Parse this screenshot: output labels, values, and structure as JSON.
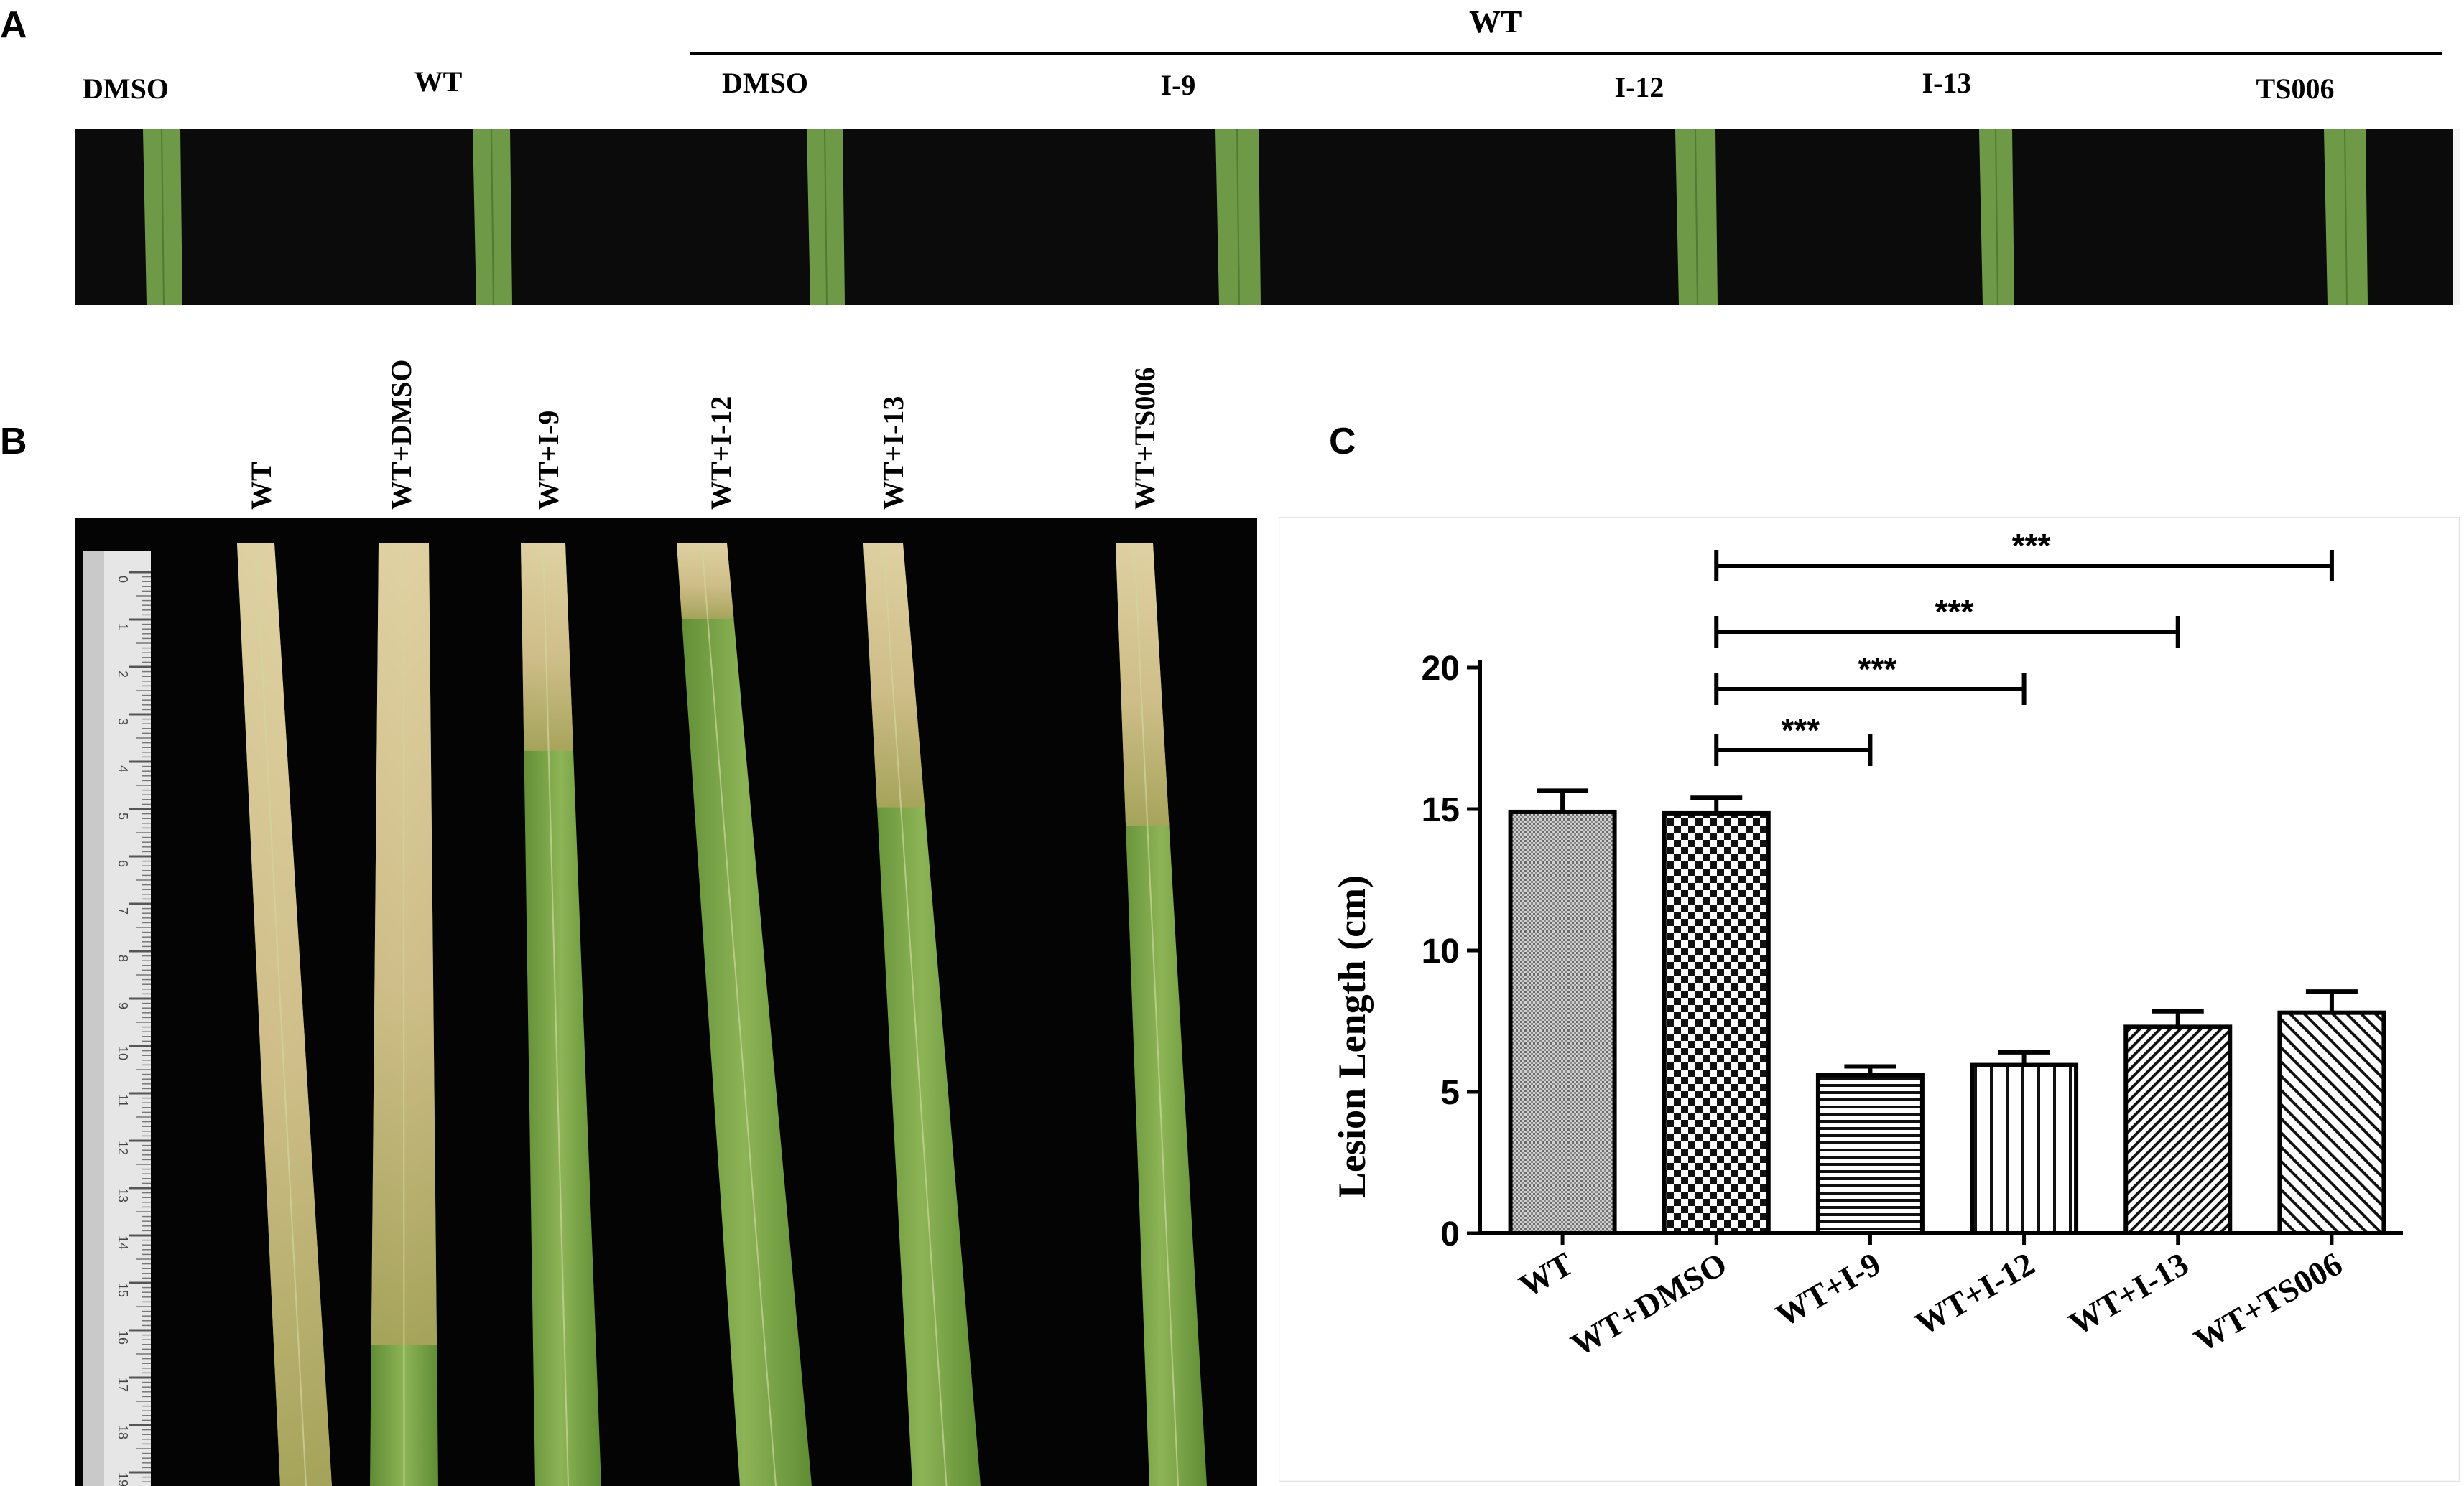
{
  "panelA": {
    "letter": "A",
    "group_label": "WT",
    "columns": [
      "DMSO",
      "WT",
      "DMSO",
      "I-9",
      "I-12",
      "I-13",
      "TS006"
    ],
    "colors": {
      "background": "#0c0b0b",
      "leaf": "#6e9a48"
    }
  },
  "panelB": {
    "letter": "B",
    "columns": [
      "WT",
      "WT+DMSO",
      "WT+I-9",
      "WT+I-12",
      "WT+I-13",
      "WT+TS006"
    ],
    "ruler_ticks": [
      "0",
      "1",
      "2",
      "3",
      "4",
      "5",
      "6",
      "7",
      "8",
      "9",
      "10",
      "11",
      "12",
      "13",
      "14",
      "15",
      "16",
      "17",
      "18",
      "19"
    ],
    "colors": {
      "background": "#050404",
      "healthy_leaf": "#7aa247",
      "lesion": "#d8c69a",
      "ruler": "#e6e6e6"
    }
  },
  "panelC": {
    "letter": "C",
    "chart_data": {
      "type": "bar",
      "categories": [
        "WT",
        "WT+DMSO",
        "WT+I-9",
        "WT+I-12",
        "WT+I-13",
        "WT+TS006"
      ],
      "series": [
        {
          "values": [
            14.9,
            14.85,
            5.6,
            5.95,
            7.3,
            7.8
          ],
          "errors": [
            0.75,
            0.55,
            0.3,
            0.45,
            0.55,
            0.75
          ]
        }
      ],
      "patterns": [
        "stipple",
        "checker",
        "horizontal-lines",
        "vertical-lines",
        "diagonal-dense",
        "diagonal-wide"
      ],
      "title": "",
      "xlabel": "",
      "ylabel": "Lesion Length (cm)",
      "ylim": [
        0,
        20
      ],
      "yticks": [
        "0",
        "5",
        "10",
        "15",
        "20"
      ],
      "grid": false,
      "significance": [
        {
          "from": "WT+DMSO",
          "to": "WT+I-9",
          "label": "***"
        },
        {
          "from": "WT+DMSO",
          "to": "WT+I-12",
          "label": "***"
        },
        {
          "from": "WT+DMSO",
          "to": "WT+I-13",
          "label": "***"
        },
        {
          "from": "WT+DMSO",
          "to": "WT+TS006",
          "label": "***"
        }
      ]
    }
  }
}
